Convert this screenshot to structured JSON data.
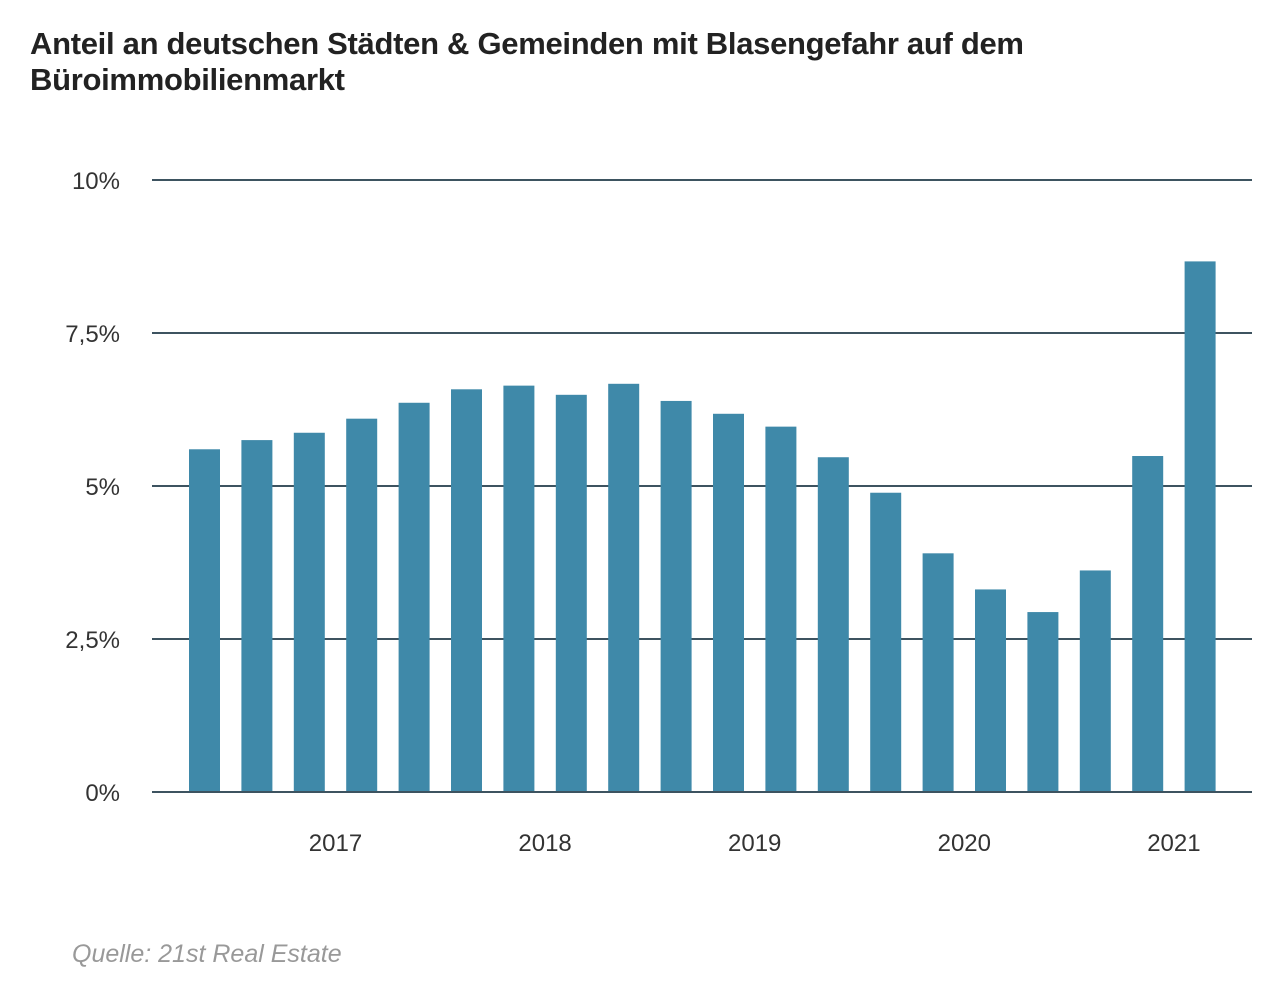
{
  "chart_data": {
    "type": "bar",
    "title": "Anteil an deutschen Städten & Gemeinden mit Blasengefahr auf dem Büroimmobilienmarkt",
    "xlabel": "",
    "ylabel": "",
    "values": [
      5.6,
      5.75,
      5.87,
      6.1,
      6.36,
      6.58,
      6.64,
      6.49,
      6.67,
      6.39,
      6.18,
      5.97,
      5.47,
      4.89,
      3.9,
      3.31,
      2.94,
      3.62,
      5.49,
      8.67
    ],
    "ylim": [
      0,
      10
    ],
    "y_ticks": [
      {
        "value": 0,
        "label": "0%"
      },
      {
        "value": 2.5,
        "label": "2,5%"
      },
      {
        "value": 5,
        "label": "5%"
      },
      {
        "value": 7.5,
        "label": "7,5%"
      },
      {
        "value": 10,
        "label": "10%"
      }
    ],
    "x_ticks": [
      {
        "bar_index": 2,
        "label": "2017"
      },
      {
        "bar_index": 6,
        "label": "2018"
      },
      {
        "bar_index": 10,
        "label": "2019"
      },
      {
        "bar_index": 14,
        "label": "2020"
      },
      {
        "bar_index": 18,
        "label": "2021"
      }
    ],
    "grid": true,
    "legend": "none",
    "bar_color": "#3f89a9",
    "gridline_color": "#3d5360"
  },
  "source": "Quelle: 21st Real Estate"
}
